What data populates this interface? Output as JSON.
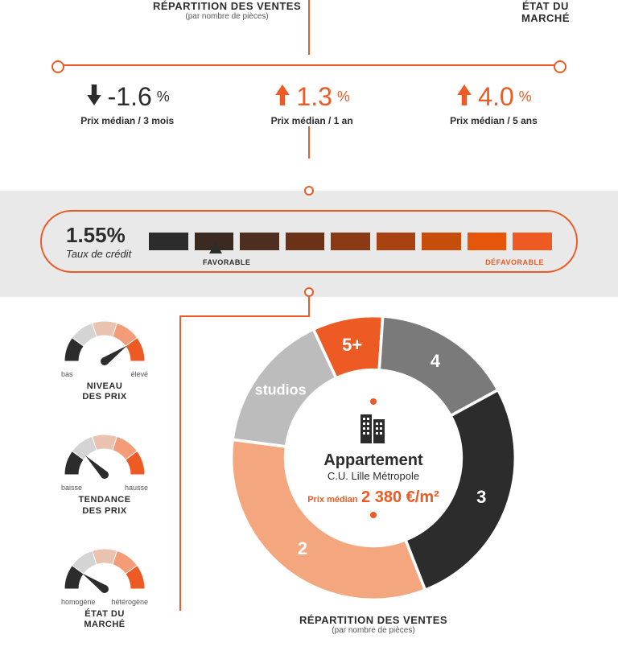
{
  "colors": {
    "accent": "#ee5a24",
    "dark": "#2c2c2c",
    "mid": "#555555",
    "band_bg": "#e9e9e9"
  },
  "top": {
    "left_title": "RÉPARTITION DES VENTES",
    "left_sub": "(par nombre de pièces)",
    "right_title": "ÉTAT DU",
    "right_title2": "MARCHÉ"
  },
  "trends": [
    {
      "direction": "down",
      "value": "-1.6",
      "pct": "%",
      "label": "Prix médian / 3 mois",
      "color": "#2c2c2c"
    },
    {
      "direction": "up",
      "value": "1.3",
      "pct": "%",
      "label": "Prix médian / 1 an",
      "color": "#ee5a24"
    },
    {
      "direction": "up",
      "value": "4.0",
      "pct": "%",
      "label": "Prix médian / 5 ans",
      "color": "#ee5a24"
    }
  ],
  "credit": {
    "rate": "1.55%",
    "label": "Taux de crédit",
    "left_word": "FAVORABLE",
    "right_word": "DÉFAVORABLE",
    "pointer_index": 1,
    "bars": [
      "#2c2c2c",
      "#3a2a22",
      "#4d2e1f",
      "#6b3218",
      "#8a3a14",
      "#a84311",
      "#c74d0d",
      "#e5560a",
      "#ee5a24"
    ]
  },
  "gauges": [
    {
      "title1": "NIVEAU",
      "title2": "DES PRIX",
      "left": "bas",
      "right": "élevé",
      "needle_deg": 55,
      "segments": [
        "#2c2c2c",
        "#d4d4d4",
        "#e9c2b0",
        "#f39c77",
        "#ee5a24"
      ]
    },
    {
      "title1": "TENDANCE",
      "title2": "DES PRIX",
      "left": "baisse",
      "right": "hausse",
      "needle_deg": -45,
      "segments": [
        "#2c2c2c",
        "#d4d4d4",
        "#e9c2b0",
        "#f39c77",
        "#ee5a24"
      ]
    },
    {
      "title1": "ÉTAT DU",
      "title2": "MARCHÉ",
      "left": "homogène",
      "right": "hétérogène",
      "needle_deg": -55,
      "segments": [
        "#2c2c2c",
        "#d4d4d4",
        "#e9c2b0",
        "#f39c77",
        "#ee5a24"
      ]
    }
  ],
  "donut": {
    "type": "donut",
    "segments": [
      {
        "label": "5+",
        "pct": 8,
        "color": "#ee5a24",
        "label_color": "#ffffff"
      },
      {
        "label": "4",
        "pct": 16,
        "color": "#7a7a7a",
        "label_color": "#ffffff"
      },
      {
        "label": "3",
        "pct": 27,
        "color": "#2c2c2c",
        "label_color": "#ffffff"
      },
      {
        "label": "2",
        "pct": 33,
        "color": "#f4a77f",
        "label_color": "#ffffff"
      },
      {
        "label": "studios",
        "pct": 16,
        "color": "#bcbcbc",
        "label_color": "#ffffff"
      }
    ],
    "start_angle_deg": -25,
    "inner_ratio": 0.62,
    "center": {
      "title": "Appartement",
      "sub": "C.U. Lille Métropole",
      "price_label": "Prix médian",
      "price": "2 380 €/m²"
    },
    "title": "RÉPARTITION DES VENTES",
    "sub": "(par nombre de pièces)"
  }
}
